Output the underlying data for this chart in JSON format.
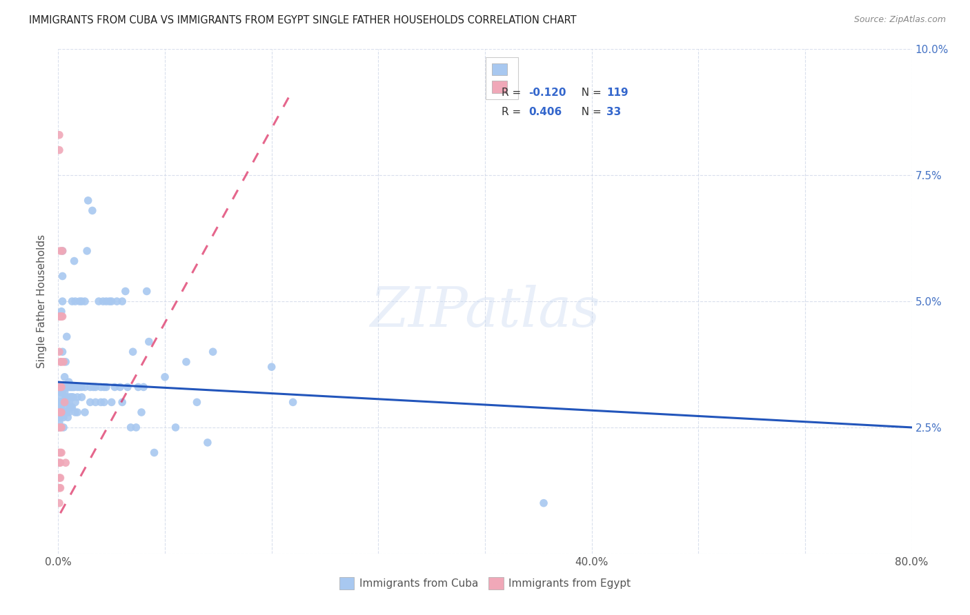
{
  "title": "IMMIGRANTS FROM CUBA VS IMMIGRANTS FROM EGYPT SINGLE FATHER HOUSEHOLDS CORRELATION CHART",
  "source": "Source: ZipAtlas.com",
  "ylabel": "Single Father Households",
  "xlim": [
    0.0,
    0.8
  ],
  "ylim": [
    0.0,
    0.1
  ],
  "cuba_color": "#a8c8f0",
  "egypt_color": "#f0a8b8",
  "cuba_line_color": "#2255bb",
  "egypt_line_color": "#dd3366",
  "background_color": "#ffffff",
  "grid_color": "#d0d8e8",
  "watermark": "ZIPatlas",
  "legend_label_cuba": "Immigrants from Cuba",
  "legend_label_egypt": "Immigrants from Egypt",
  "cuba_trend_x0": 0.0,
  "cuba_trend_y0": 0.034,
  "cuba_trend_x1": 0.8,
  "cuba_trend_y1": 0.025,
  "egypt_trend_x0": 0.002,
  "egypt_trend_y0": 0.008,
  "egypt_trend_x1": 0.22,
  "egypt_trend_y1": 0.092,
  "cuba_points": [
    [
      0.001,
      0.03
    ],
    [
      0.001,
      0.029
    ],
    [
      0.001,
      0.028
    ],
    [
      0.001,
      0.033
    ],
    [
      0.001,
      0.027
    ],
    [
      0.001,
      0.026
    ],
    [
      0.001,
      0.025
    ],
    [
      0.002,
      0.032
    ],
    [
      0.002,
      0.031
    ],
    [
      0.002,
      0.03
    ],
    [
      0.002,
      0.029
    ],
    [
      0.002,
      0.028
    ],
    [
      0.002,
      0.027
    ],
    [
      0.003,
      0.033
    ],
    [
      0.003,
      0.032
    ],
    [
      0.003,
      0.03
    ],
    [
      0.003,
      0.029
    ],
    [
      0.003,
      0.028
    ],
    [
      0.003,
      0.048
    ],
    [
      0.004,
      0.06
    ],
    [
      0.004,
      0.055
    ],
    [
      0.004,
      0.05
    ],
    [
      0.004,
      0.04
    ],
    [
      0.004,
      0.032
    ],
    [
      0.004,
      0.03
    ],
    [
      0.004,
      0.028
    ],
    [
      0.005,
      0.033
    ],
    [
      0.005,
      0.03
    ],
    [
      0.005,
      0.028
    ],
    [
      0.005,
      0.027
    ],
    [
      0.005,
      0.025
    ],
    [
      0.006,
      0.035
    ],
    [
      0.006,
      0.033
    ],
    [
      0.006,
      0.032
    ],
    [
      0.006,
      0.03
    ],
    [
      0.006,
      0.028
    ],
    [
      0.007,
      0.038
    ],
    [
      0.007,
      0.033
    ],
    [
      0.007,
      0.031
    ],
    [
      0.007,
      0.03
    ],
    [
      0.007,
      0.028
    ],
    [
      0.008,
      0.043
    ],
    [
      0.008,
      0.033
    ],
    [
      0.008,
      0.03
    ],
    [
      0.008,
      0.028
    ],
    [
      0.009,
      0.033
    ],
    [
      0.009,
      0.031
    ],
    [
      0.009,
      0.029
    ],
    [
      0.009,
      0.027
    ],
    [
      0.01,
      0.034
    ],
    [
      0.01,
      0.033
    ],
    [
      0.01,
      0.03
    ],
    [
      0.01,
      0.028
    ],
    [
      0.011,
      0.033
    ],
    [
      0.011,
      0.031
    ],
    [
      0.011,
      0.029
    ],
    [
      0.012,
      0.033
    ],
    [
      0.012,
      0.031
    ],
    [
      0.012,
      0.029
    ],
    [
      0.013,
      0.05
    ],
    [
      0.013,
      0.033
    ],
    [
      0.013,
      0.031
    ],
    [
      0.013,
      0.029
    ],
    [
      0.014,
      0.033
    ],
    [
      0.014,
      0.031
    ],
    [
      0.015,
      0.058
    ],
    [
      0.015,
      0.033
    ],
    [
      0.016,
      0.05
    ],
    [
      0.016,
      0.03
    ],
    [
      0.016,
      0.028
    ],
    [
      0.018,
      0.033
    ],
    [
      0.018,
      0.031
    ],
    [
      0.018,
      0.028
    ],
    [
      0.02,
      0.05
    ],
    [
      0.02,
      0.033
    ],
    [
      0.022,
      0.05
    ],
    [
      0.022,
      0.033
    ],
    [
      0.022,
      0.031
    ],
    [
      0.025,
      0.05
    ],
    [
      0.025,
      0.033
    ],
    [
      0.025,
      0.028
    ],
    [
      0.027,
      0.06
    ],
    [
      0.028,
      0.07
    ],
    [
      0.03,
      0.033
    ],
    [
      0.03,
      0.03
    ],
    [
      0.032,
      0.068
    ],
    [
      0.033,
      0.033
    ],
    [
      0.035,
      0.033
    ],
    [
      0.035,
      0.03
    ],
    [
      0.038,
      0.05
    ],
    [
      0.04,
      0.033
    ],
    [
      0.04,
      0.03
    ],
    [
      0.042,
      0.05
    ],
    [
      0.043,
      0.033
    ],
    [
      0.043,
      0.03
    ],
    [
      0.045,
      0.05
    ],
    [
      0.045,
      0.033
    ],
    [
      0.048,
      0.05
    ],
    [
      0.05,
      0.05
    ],
    [
      0.05,
      0.03
    ],
    [
      0.053,
      0.033
    ],
    [
      0.055,
      0.05
    ],
    [
      0.058,
      0.033
    ],
    [
      0.06,
      0.05
    ],
    [
      0.06,
      0.03
    ],
    [
      0.063,
      0.052
    ],
    [
      0.065,
      0.033
    ],
    [
      0.068,
      0.025
    ],
    [
      0.07,
      0.04
    ],
    [
      0.073,
      0.025
    ],
    [
      0.075,
      0.033
    ],
    [
      0.078,
      0.028
    ],
    [
      0.08,
      0.033
    ],
    [
      0.083,
      0.052
    ],
    [
      0.085,
      0.042
    ],
    [
      0.09,
      0.02
    ],
    [
      0.1,
      0.035
    ],
    [
      0.11,
      0.025
    ],
    [
      0.12,
      0.038
    ],
    [
      0.13,
      0.03
    ],
    [
      0.14,
      0.022
    ],
    [
      0.145,
      0.04
    ],
    [
      0.2,
      0.037
    ],
    [
      0.22,
      0.03
    ],
    [
      0.455,
      0.01
    ]
  ],
  "egypt_points": [
    [
      0.001,
      0.083
    ],
    [
      0.001,
      0.08
    ],
    [
      0.001,
      0.047
    ],
    [
      0.001,
      0.04
    ],
    [
      0.001,
      0.033
    ],
    [
      0.001,
      0.028
    ],
    [
      0.001,
      0.025
    ],
    [
      0.001,
      0.02
    ],
    [
      0.001,
      0.018
    ],
    [
      0.001,
      0.015
    ],
    [
      0.001,
      0.013
    ],
    [
      0.001,
      0.01
    ],
    [
      0.002,
      0.06
    ],
    [
      0.002,
      0.047
    ],
    [
      0.002,
      0.038
    ],
    [
      0.002,
      0.033
    ],
    [
      0.002,
      0.028
    ],
    [
      0.002,
      0.025
    ],
    [
      0.002,
      0.02
    ],
    [
      0.002,
      0.018
    ],
    [
      0.002,
      0.015
    ],
    [
      0.002,
      0.013
    ],
    [
      0.003,
      0.047
    ],
    [
      0.003,
      0.038
    ],
    [
      0.003,
      0.033
    ],
    [
      0.003,
      0.028
    ],
    [
      0.003,
      0.025
    ],
    [
      0.003,
      0.02
    ],
    [
      0.004,
      0.06
    ],
    [
      0.004,
      0.047
    ],
    [
      0.005,
      0.038
    ],
    [
      0.006,
      0.03
    ],
    [
      0.007,
      0.018
    ]
  ]
}
